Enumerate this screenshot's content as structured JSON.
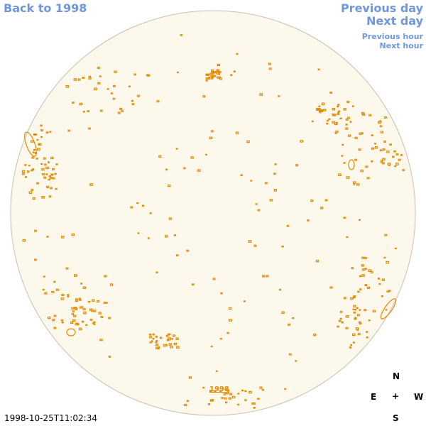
{
  "nav": {
    "back_label": "Back to 1998",
    "prev_day_label": "Previous day",
    "next_day_label": "Next day",
    "prev_hour_label": "Previous hour",
    "next_hour_label": "Next hour"
  },
  "timestamp": "1998-10-25T11:02:34",
  "year_label": "1998",
  "compass": {
    "north": "N",
    "east": "E",
    "center": "+",
    "west": "W",
    "south": "S"
  },
  "colors": {
    "link": "#6f97e0",
    "disk_fill": "#fdf8ec",
    "disk_edge": "#c8bfb0",
    "contour": "#e68a00"
  }
}
